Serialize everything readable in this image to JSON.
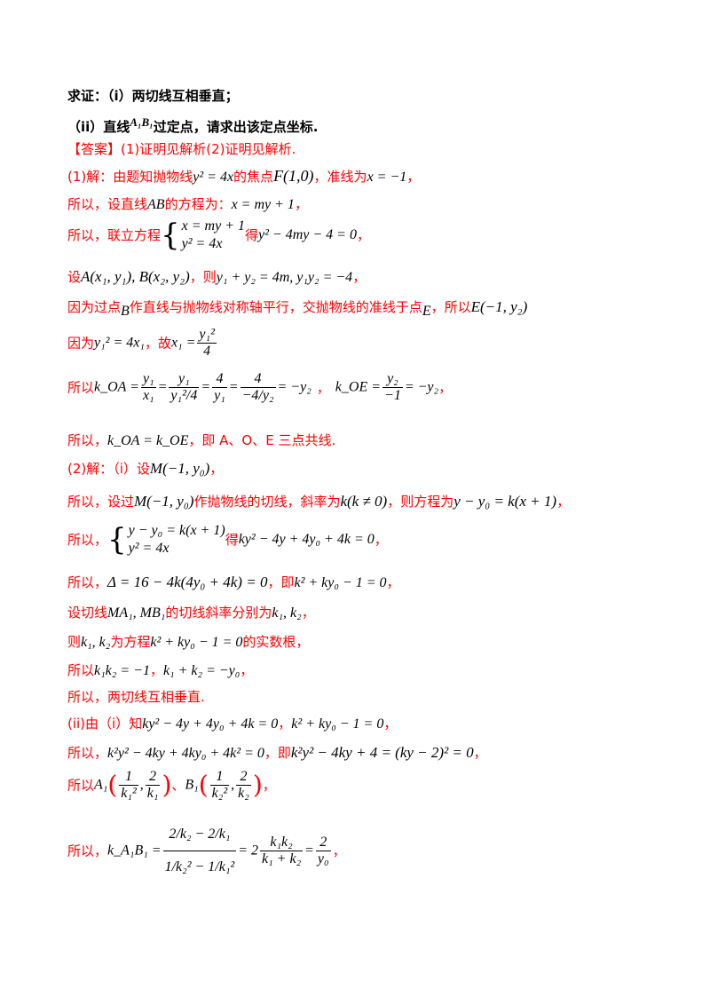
{
  "lines": {
    "l1_prefix": "求证：（i）两切线互相垂直；",
    "l2_a": "（ii）直线",
    "l2_m": "A₁B₁",
    "l2_b": "过定点，请求出该定点坐标.",
    "l3": "【答案】(1)证明见解析(2)证明见解析.",
    "l4_a": "(1)解：由题知抛物线",
    "l4_m1": "y² = 4x",
    "l4_b": "的焦点",
    "l4_m2": "F(1,0)",
    "l4_c": "，准线为",
    "l4_m3": "x = −1",
    "l4_d": "，",
    "l5_a": "所以，设直线",
    "l5_m1": "AB",
    "l5_b": "的方程为：",
    "l5_m2": "x = my + 1",
    "l5_c": "，",
    "l6_a": "所以，联立方程",
    "l6_s1": "x = my + 1",
    "l6_s2": "y² = 4x",
    "l6_b": "得",
    "l6_m": "y² − 4my − 4 = 0",
    "l6_c": "，",
    "l7_a": "设",
    "l7_m1": "A(x₁, y₁), B(x₂, y₂)",
    "l7_b": "，则",
    "l7_m2": "y₁ + y₂ = 4m, y₁y₂ = −4",
    "l7_c": "，",
    "l8_a": "因为过点",
    "l8_m1": "B",
    "l8_b": "作直线与抛物线对称轴平行，交抛物线的准线于点",
    "l8_m2": "E",
    "l8_c": "，所以",
    "l8_m3": "E(−1, y₂)",
    "l9_a": "因为",
    "l9_m1": "y₁² = 4x₁",
    "l9_b": "，故",
    "l9_m2": "x₁ =",
    "l9_n": "y₁²",
    "l9_d": "4",
    "l10_a": "所以",
    "l10_m1": "k_OA =",
    "l10_f1n": "y₁",
    "l10_f1d": "x₁",
    "l10_eq": "=",
    "l10_f2n": "y₁",
    "l10_f2d": "y₁²/4",
    "l10_f3n": "4",
    "l10_f3d": "y₁",
    "l10_f4n": "4",
    "l10_f4d": "−4/y₂",
    "l10_end": "= −y₂",
    "l10_b": "，",
    "l10_m2": "k_OE =",
    "l10_f5n": "y₂",
    "l10_f5d": "−1",
    "l10_end2": "= −y₂",
    "l10_c": "，",
    "l11_a": "所以，",
    "l11_m": "k_OA = k_OE",
    "l11_b": "，即 A、O、E 三点共线.",
    "l12_a": "(2)解：（i）设",
    "l12_m": "M(−1, y₀)",
    "l12_b": "，",
    "l13_a": "所以，设过",
    "l13_m1": "M(−1, y₀)",
    "l13_b": "作抛物线的切线，斜率为",
    "l13_m2": "k(k ≠ 0)",
    "l13_c": "，则方程为",
    "l13_m3": "y − y₀ = k(x + 1)",
    "l13_d": "，",
    "l14_a": "所以，",
    "l14_s1": "y − y₀ = k(x + 1)",
    "l14_s2": "y² = 4x",
    "l14_b": "得",
    "l14_m": "ky² − 4y + 4y₀ + 4k = 0",
    "l14_c": "，",
    "l15_a": "所以，",
    "l15_m1": "Δ = 16 − 4k(4y₀ + 4k) = 0",
    "l15_b": "，即",
    "l15_m2": "k² + ky₀ − 1 = 0",
    "l15_c": "，",
    "l16_a": "设切线",
    "l16_m1": "MA₁, MB₁",
    "l16_b": "的切线斜率分别为",
    "l16_m2": "k₁, k₂",
    "l16_c": "，",
    "l17_a": "则",
    "l17_m1": "k₁, k₂",
    "l17_b": "为方程",
    "l17_m2": "k² + ky₀ − 1 = 0",
    "l17_c": "的实数根，",
    "l18_a": "所以",
    "l18_m1": "k₁k₂ = −1",
    "l18_b": "，",
    "l18_m2": "k₁ + k₂ = −y₀",
    "l18_c": "，",
    "l19": "所以，两切线互相垂直.",
    "l20_a": "(ii)由（i）知",
    "l20_m1": "ky² − 4y + 4y₀ + 4k = 0",
    "l20_b": "，",
    "l20_m2": "k² + ky₀ − 1 = 0",
    "l20_c": "，",
    "l21_a": "所以，",
    "l21_m1": "k²y² − 4ky + 4ky₀ + 4k² = 0",
    "l21_b": "，即",
    "l21_m2": "k²y² − 4ky + 4 = (ky − 2)² = 0",
    "l21_c": "，",
    "l22_a": "所以",
    "l22_m1": "A₁",
    "l22_f1n": "1",
    "l22_f1d": "k₁²",
    "l22_f2n": "2",
    "l22_f2d": "k₁",
    "l22_b": "、",
    "l22_m2": "B₁",
    "l22_f3n": "1",
    "l22_f3d": "k₂²",
    "l22_f4n": "2",
    "l22_f4d": "k₂",
    "l22_c": "，",
    "l23_a": "所以，",
    "l23_m1": "k_A₁B₁ =",
    "l23_fn": "2/k₂ − 2/k₁",
    "l23_fd": "1/k₂² − 1/k₁²",
    "l23_eq": "= 2",
    "l23_f2n": "k₁k₂",
    "l23_f2d": "k₁ + k₂",
    "l23_eq2": "=",
    "l23_f3n": "2",
    "l23_f3d": "y₀",
    "l23_c": "，"
  }
}
